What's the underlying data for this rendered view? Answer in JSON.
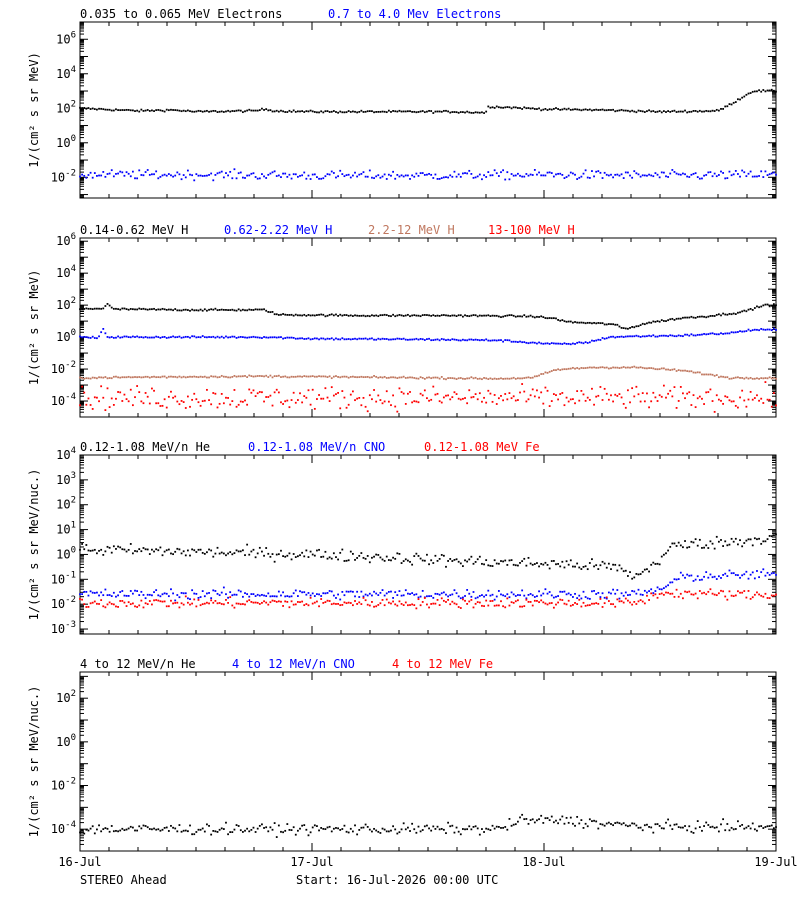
{
  "chart_data": [
    {
      "type": "scatter",
      "legend": [
        {
          "label": "0.035 to 0.065 MeV Electrons",
          "color": "#000000"
        },
        {
          "label": "0.7 to 4.0 Mev Electrons",
          "color": "#0000ff"
        }
      ],
      "ylabel": "1/(cm² s sr MeV)",
      "yscale": "log",
      "ylim_log10": [
        -3.2,
        7
      ],
      "yticks": [
        {
          "exp": 6,
          "label": "10",
          "sup": "6"
        },
        {
          "exp": 4,
          "label": "10",
          "sup": "4"
        },
        {
          "exp": 2,
          "label": "10",
          "sup": "2"
        },
        {
          "exp": 0,
          "label": "10",
          "sup": "0"
        },
        {
          "exp": -2,
          "label": "10",
          "sup": "-2"
        }
      ],
      "series": [
        {
          "color": "#000000",
          "points": [
            [
              0,
              2.0
            ],
            [
              0.25,
              1.85
            ],
            [
              0.4,
              1.9
            ],
            [
              0.5,
              1.8
            ],
            [
              0.75,
              1.85
            ],
            [
              0.8,
              1.95
            ],
            [
              0.84,
              1.85
            ],
            [
              1.0,
              1.8
            ],
            [
              1.4,
              1.8
            ],
            [
              1.6,
              1.8
            ],
            [
              1.75,
              1.75
            ],
            [
              1.76,
              2.1
            ],
            [
              1.85,
              2.05
            ],
            [
              2.0,
              1.95
            ],
            [
              2.25,
              1.9
            ],
            [
              2.5,
              1.8
            ],
            [
              2.75,
              1.85
            ],
            [
              2.8,
              2.2
            ],
            [
              2.9,
              3.0
            ],
            [
              3.0,
              3.0
            ]
          ]
        },
        {
          "color": "#0000ff",
          "points": [
            [
              0,
              -1.85
            ],
            [
              0.5,
              -1.85
            ],
            [
              1.0,
              -1.9
            ],
            [
              1.5,
              -1.9
            ],
            [
              2.0,
              -1.85
            ],
            [
              2.5,
              -1.9
            ],
            [
              3.0,
              -1.85
            ]
          ],
          "scatter_sd": 0.13
        }
      ]
    },
    {
      "type": "scatter",
      "legend": [
        {
          "label": "0.14-0.62 MeV H",
          "color": "#000000"
        },
        {
          "label": "0.62-2.22 MeV H",
          "color": "#0000ff"
        },
        {
          "label": "2.2-12 MeV H",
          "color": "#c07860"
        },
        {
          "label": "13-100 MeV H",
          "color": "#ff0000"
        }
      ],
      "ylabel": "1/(cm² s sr MeV)",
      "yscale": "log",
      "ylim_log10": [
        -5,
        6.2
      ],
      "yticks": [
        {
          "exp": 6,
          "label": "10",
          "sup": "6"
        },
        {
          "exp": 4,
          "label": "10",
          "sup": "4"
        },
        {
          "exp": 2,
          "label": "10",
          "sup": "2"
        },
        {
          "exp": 0,
          "label": "10",
          "sup": "0"
        },
        {
          "exp": -2,
          "label": "10",
          "sup": "-2"
        },
        {
          "exp": -4,
          "label": "10",
          "sup": "-4"
        }
      ],
      "series": [
        {
          "color": "#000000",
          "points": [
            [
              0,
              1.75
            ],
            [
              0.1,
              1.8
            ],
            [
              0.12,
              2.1
            ],
            [
              0.14,
              1.75
            ],
            [
              0.5,
              1.7
            ],
            [
              0.8,
              1.7
            ],
            [
              0.85,
              1.4
            ],
            [
              1.2,
              1.35
            ],
            [
              1.6,
              1.35
            ],
            [
              1.95,
              1.3
            ],
            [
              2.05,
              1.15
            ],
            [
              2.1,
              0.95
            ],
            [
              2.3,
              0.8
            ],
            [
              2.35,
              0.5
            ],
            [
              2.45,
              0.9
            ],
            [
              2.6,
              1.2
            ],
            [
              2.7,
              1.3
            ],
            [
              2.85,
              1.55
            ],
            [
              2.95,
              2.0
            ],
            [
              3.0,
              2.0
            ]
          ]
        },
        {
          "color": "#0000ff",
          "points": [
            [
              0,
              0
            ],
            [
              0.08,
              -0.05
            ],
            [
              0.1,
              0.5
            ],
            [
              0.12,
              0.0
            ],
            [
              0.5,
              0.0
            ],
            [
              0.8,
              0.0
            ],
            [
              1.0,
              -0.1
            ],
            [
              1.5,
              -0.15
            ],
            [
              1.8,
              -0.2
            ],
            [
              2.0,
              -0.4
            ],
            [
              2.1,
              -0.45
            ],
            [
              2.2,
              -0.3
            ],
            [
              2.28,
              0.0
            ],
            [
              2.4,
              0.05
            ],
            [
              2.6,
              0.1
            ],
            [
              2.8,
              0.25
            ],
            [
              2.9,
              0.45
            ],
            [
              3.0,
              0.45
            ]
          ]
        },
        {
          "color": "#c07860",
          "points": [
            [
              0,
              -2.55
            ],
            [
              0.3,
              -2.5
            ],
            [
              0.8,
              -2.45
            ],
            [
              1.5,
              -2.55
            ],
            [
              1.8,
              -2.6
            ],
            [
              1.95,
              -2.55
            ],
            [
              2.05,
              -2.05
            ],
            [
              2.2,
              -1.9
            ],
            [
              2.4,
              -1.9
            ],
            [
              2.6,
              -2.1
            ],
            [
              2.8,
              -2.55
            ],
            [
              3.0,
              -2.55
            ]
          ]
        },
        {
          "color": "#ff0000",
          "points": [
            [
              0,
              -3.8
            ],
            [
              3.0,
              -3.8
            ]
          ],
          "scatter_sd": 0.35
        }
      ]
    },
    {
      "type": "scatter",
      "legend": [
        {
          "label": "0.12-1.08 MeV/n He",
          "color": "#000000"
        },
        {
          "label": "0.12-1.08 MeV/n CNO",
          "color": "#0000ff"
        },
        {
          "label": "0.12-1.08 MeV Fe",
          "color": "#ff0000"
        }
      ],
      "ylabel": "1/(cm² s sr MeV/nuc.)",
      "yscale": "log",
      "ylim_log10": [
        -3.2,
        4
      ],
      "yticks": [
        {
          "exp": 4,
          "label": "10",
          "sup": "4"
        },
        {
          "exp": 3,
          "label": "10",
          "sup": "3"
        },
        {
          "exp": 2,
          "label": "10",
          "sup": "2"
        },
        {
          "exp": 1,
          "label": "10",
          "sup": "1"
        },
        {
          "exp": 0,
          "label": "10",
          "sup": "0"
        },
        {
          "exp": -1,
          "label": "10",
          "sup": "-1"
        },
        {
          "exp": -2,
          "label": "10",
          "sup": "-2"
        },
        {
          "exp": -3,
          "label": "10",
          "sup": "-3"
        }
      ],
      "series": [
        {
          "color": "#000000",
          "points": [
            [
              0,
              0.2
            ],
            [
              0.5,
              0.1
            ],
            [
              1.0,
              0.0
            ],
            [
              1.3,
              -0.1
            ],
            [
              1.6,
              -0.25
            ],
            [
              1.9,
              -0.35
            ],
            [
              2.1,
              -0.4
            ],
            [
              2.3,
              -0.5
            ],
            [
              2.4,
              -0.9
            ],
            [
              2.5,
              -0.2
            ],
            [
              2.55,
              0.3
            ],
            [
              2.6,
              0.4
            ],
            [
              2.8,
              0.5
            ],
            [
              3.0,
              0.7
            ]
          ],
          "scatter_sd": 0.12
        },
        {
          "color": "#0000ff",
          "points": [
            [
              0,
              -1.6
            ],
            [
              2.4,
              -1.6
            ],
            [
              2.5,
              -1.4
            ],
            [
              2.6,
              -0.9
            ],
            [
              2.8,
              -0.85
            ],
            [
              3.0,
              -0.8
            ]
          ],
          "scatter_sd": 0.1
        },
        {
          "color": "#ff0000",
          "points": [
            [
              0,
              -1.95
            ],
            [
              2.4,
              -1.95
            ],
            [
              2.5,
              -1.55
            ],
            [
              3.0,
              -1.65
            ]
          ],
          "scatter_sd": 0.1
        }
      ]
    },
    {
      "type": "scatter",
      "legend": [
        {
          "label": "4 to 12 MeV/n He",
          "color": "#000000"
        },
        {
          "label": "4 to 12 MeV/n CNO",
          "color": "#0000ff"
        },
        {
          "label": "4 to 12 MeV Fe",
          "color": "#ff0000"
        }
      ],
      "ylabel": "1/(cm² s sr MeV/nuc.)",
      "yscale": "log",
      "ylim_log10": [
        -5,
        3.2
      ],
      "yticks": [
        {
          "exp": 2,
          "label": "10",
          "sup": "2"
        },
        {
          "exp": 0,
          "label": "10",
          "sup": "0"
        },
        {
          "exp": -2,
          "label": "10",
          "sup": "-2"
        },
        {
          "exp": -4,
          "label": "10",
          "sup": "-4"
        }
      ],
      "series": [
        {
          "color": "#000000",
          "points": [
            [
              0,
              -4.0
            ],
            [
              1.8,
              -4.0
            ],
            [
              1.9,
              -3.6
            ],
            [
              2.1,
              -3.6
            ],
            [
              2.3,
              -3.8
            ],
            [
              2.5,
              -3.9
            ],
            [
              3.0,
              -3.9
            ]
          ],
          "scatter_sd": 0.12
        }
      ]
    }
  ],
  "x_axis": {
    "range_days": [
      0,
      3
    ],
    "ticks": [
      {
        "day": 0,
        "label": "16-Jul"
      },
      {
        "day": 1,
        "label": "17-Jul"
      },
      {
        "day": 2,
        "label": "18-Jul"
      },
      {
        "day": 3,
        "label": "19-Jul"
      }
    ]
  },
  "footer": {
    "spacecraft": "STEREO Ahead",
    "start": "Start: 16-Jul-2026 00:00 UTC"
  }
}
